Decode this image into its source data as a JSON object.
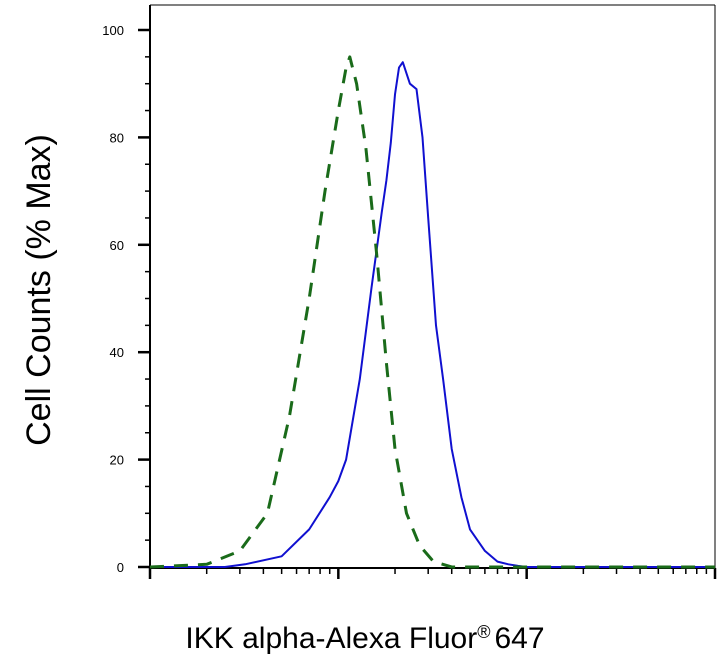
{
  "chart_data": {
    "type": "line",
    "title": "",
    "xlabel": "IKK alpha-Alexa Fluor",
    "xlabel_superscript": "®",
    "xlabel_suffix": "647",
    "ylabel": "Cell Counts (% Max)",
    "x_scale": "log",
    "xlim": [
      100,
      100000
    ],
    "ylim": [
      0,
      100
    ],
    "y_ticks": [
      0,
      20,
      40,
      60,
      80,
      100
    ],
    "y_tick_labels": [
      "0",
      "20",
      "40",
      "60",
      "80",
      "100"
    ],
    "x_tick_labels_shown": false,
    "grid": false,
    "legend": "none",
    "series": [
      {
        "color": "#1010d0",
        "style": "solid",
        "x": [
          100,
          250,
          320,
          500,
          700,
          900,
          1000,
          1100,
          1300,
          1500,
          1700,
          1800,
          1900,
          2000,
          2100,
          2200,
          2400,
          2600,
          2800,
          3000,
          3300,
          3600,
          4000,
          4500,
          5000,
          6000,
          7000,
          8000,
          9000,
          10000,
          20000,
          100000
        ],
        "y": [
          0,
          0,
          0.5,
          2,
          7,
          13,
          16,
          20,
          35,
          52,
          66,
          72,
          79,
          88,
          93,
          94,
          90,
          89,
          80,
          65,
          45,
          35,
          22,
          13,
          7,
          3,
          1,
          0.5,
          0.2,
          0,
          0,
          0
        ]
      },
      {
        "color": "#1a6b1a",
        "style": "dashed",
        "x": [
          100,
          200,
          300,
          420,
          550,
          700,
          850,
          1000,
          1100,
          1150,
          1250,
          1400,
          1600,
          1800,
          2000,
          2300,
          2700,
          3200,
          4000,
          5000,
          100000
        ],
        "y": [
          0,
          0.5,
          3,
          10,
          28,
          50,
          70,
          85,
          93,
          95,
          90,
          78,
          58,
          38,
          22,
          10,
          4,
          1,
          0,
          0,
          0
        ]
      }
    ]
  }
}
